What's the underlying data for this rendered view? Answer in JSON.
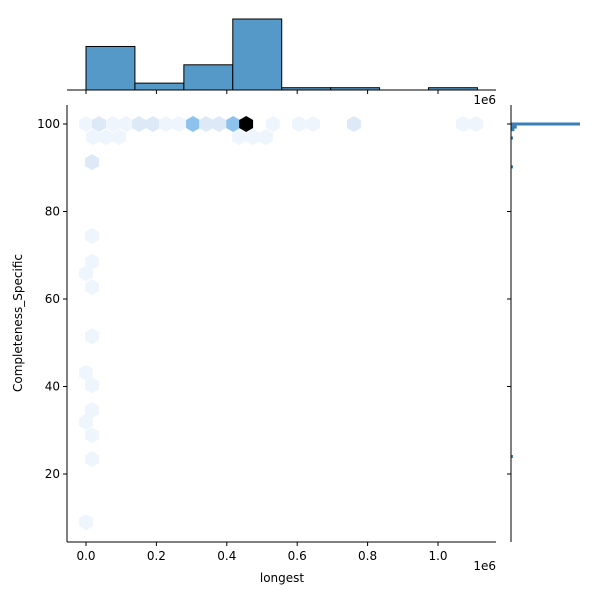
{
  "chart_data": {
    "type": "hexbin-jointplot",
    "xlabel": "longest",
    "ylabel": "Completeness_Specific",
    "x_offset_label": "1e6",
    "top_offset_label": "1e6",
    "xlim": [
      -0.055,
      1.165
    ],
    "ylim": [
      4.5,
      104.5
    ],
    "x_ticks": [
      "0.0",
      "0.2",
      "0.4",
      "0.6",
      "0.8",
      "1.0"
    ],
    "y_ticks": [
      "20",
      "40",
      "60",
      "80",
      "100"
    ],
    "colors": {
      "bar": "#5599c8",
      "levels": [
        "#eef5fc",
        "#dde9f6",
        "#8cc2ec",
        "#000000"
      ]
    },
    "top_histogram": {
      "bin_start": 0.0,
      "bin_width": 0.139,
      "counts": [
        19,
        3,
        11,
        31,
        1,
        1,
        0,
        1
      ]
    },
    "right_histogram": [
      {
        "y": 100,
        "count": 60
      },
      {
        "y": 99.3,
        "count": 5
      },
      {
        "y": 98.7,
        "count": 3
      },
      {
        "y": 96.8,
        "count": 1
      },
      {
        "y": 90.2,
        "count": 1
      },
      {
        "y": 24,
        "count": 0.3
      }
    ],
    "hexes": [
      {
        "x": 0.0,
        "y": 100,
        "level": 0
      },
      {
        "x": 0.037,
        "y": 100,
        "level": 1
      },
      {
        "x": 0.077,
        "y": 100,
        "level": 0
      },
      {
        "x": 0.114,
        "y": 100,
        "level": 0
      },
      {
        "x": 0.151,
        "y": 100,
        "level": 1
      },
      {
        "x": 0.19,
        "y": 100,
        "level": 1
      },
      {
        "x": 0.227,
        "y": 100,
        "level": 0
      },
      {
        "x": 0.264,
        "y": 100,
        "level": 0
      },
      {
        "x": 0.304,
        "y": 100,
        "level": 2
      },
      {
        "x": 0.341,
        "y": 100,
        "level": 1
      },
      {
        "x": 0.378,
        "y": 100,
        "level": 1
      },
      {
        "x": 0.418,
        "y": 100,
        "level": 2
      },
      {
        "x": 0.455,
        "y": 100,
        "level": 3
      },
      {
        "x": 0.531,
        "y": 100,
        "level": 0
      },
      {
        "x": 0.605,
        "y": 100,
        "level": 0
      },
      {
        "x": 0.645,
        "y": 100,
        "level": 0
      },
      {
        "x": 0.761,
        "y": 100,
        "level": 1
      },
      {
        "x": 1.071,
        "y": 100,
        "level": 0
      },
      {
        "x": 1.108,
        "y": 100,
        "level": 0
      },
      {
        "x": 0.02,
        "y": 97,
        "level": 0
      },
      {
        "x": 0.057,
        "y": 97,
        "level": 0
      },
      {
        "x": 0.094,
        "y": 97,
        "level": 0
      },
      {
        "x": 0.435,
        "y": 97,
        "level": 0
      },
      {
        "x": 0.474,
        "y": 97,
        "level": 0
      },
      {
        "x": 0.511,
        "y": 97,
        "level": 0
      },
      {
        "x": 0.017,
        "y": 91.3,
        "level": 1
      },
      {
        "x": 0.017,
        "y": 74.4,
        "level": 0
      },
      {
        "x": 0.017,
        "y": 68.5,
        "level": 0
      },
      {
        "x": 0.0,
        "y": 65.9,
        "level": 0
      },
      {
        "x": 0.017,
        "y": 62.7,
        "level": 0
      },
      {
        "x": 0.017,
        "y": 51.5,
        "level": 0
      },
      {
        "x": 0.0,
        "y": 43.1,
        "level": 0
      },
      {
        "x": 0.017,
        "y": 40.3,
        "level": 0
      },
      {
        "x": 0.017,
        "y": 34.6,
        "level": 0
      },
      {
        "x": 0.0,
        "y": 31.9,
        "level": 0
      },
      {
        "x": 0.017,
        "y": 28.9,
        "level": 0
      },
      {
        "x": 0.017,
        "y": 23.4,
        "level": 0
      },
      {
        "x": 0.0,
        "y": 9.0,
        "level": 0
      }
    ]
  }
}
